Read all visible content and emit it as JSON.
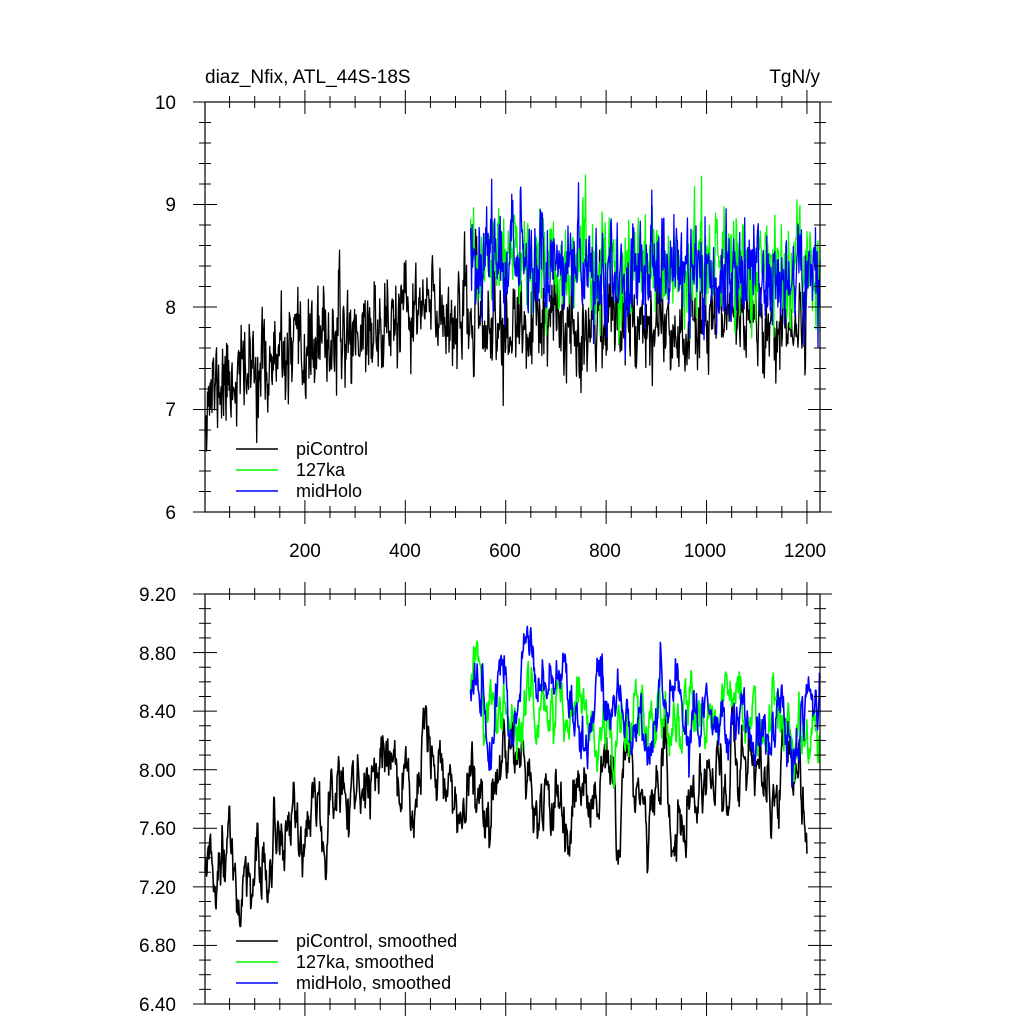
{
  "chart_data": [
    {
      "type": "line",
      "title": "diaz_Nfix, ATL_44S-18S",
      "units": "TgN/y",
      "xlabel": "",
      "ylabel": "",
      "xlim": [
        1,
        1226
      ],
      "ylim": [
        6,
        10
      ],
      "xticks": [
        200,
        400,
        600,
        800,
        1000,
        1200
      ],
      "xtick_labels": [
        "200",
        "400",
        "600",
        "800",
        "1000",
        "1200"
      ],
      "yticks": [
        6,
        7,
        8,
        9,
        10
      ],
      "ytick_labels": [
        "6",
        "7",
        "8",
        "9",
        "10"
      ],
      "legend_position": "bottom-left",
      "series": [
        {
          "name": "piControl",
          "color": "#000000",
          "x_start": 1,
          "x_end": 1200,
          "base": [
            7.15,
            7.3,
            7.4,
            7.45,
            7.55,
            7.7,
            7.75,
            7.8,
            7.9,
            8.0,
            7.9,
            7.85,
            7.75,
            7.8,
            7.85,
            7.8,
            7.9,
            7.95,
            7.85,
            7.8,
            7.9,
            8.0,
            7.9,
            7.8,
            7.85
          ],
          "noise_amp": 0.34,
          "seed": 11
        },
        {
          "name": "127ka",
          "color": "#00ff00",
          "x_start": 530,
          "x_end": 1226,
          "base": [
            8.4,
            8.45,
            8.5,
            8.45,
            8.35,
            8.3,
            8.3,
            8.35,
            8.4,
            8.4,
            8.35,
            8.3,
            8.3
          ],
          "noise_amp": 0.36,
          "seed": 23
        },
        {
          "name": "midHolo",
          "color": "#0000ff",
          "x_start": 530,
          "x_end": 1226,
          "base": [
            8.5,
            8.55,
            8.5,
            8.45,
            8.35,
            8.3,
            8.35,
            8.4,
            8.3,
            8.35,
            8.3,
            8.3,
            8.25
          ],
          "noise_amp": 0.36,
          "seed": 37
        }
      ]
    },
    {
      "type": "line",
      "title": "",
      "xlabel": "",
      "ylabel": "",
      "xlim": [
        1,
        1226
      ],
      "ylim": [
        6.4,
        9.2
      ],
      "xticks": [
        200,
        400,
        600,
        800,
        1000,
        1200
      ],
      "xtick_labels": [],
      "yticks": [
        6.4,
        6.8,
        7.2,
        7.6,
        8.0,
        8.4,
        8.8,
        9.2
      ],
      "ytick_labels": [
        "6.40",
        "6.80",
        "7.20",
        "7.60",
        "8.00",
        "8.40",
        "8.80",
        "9.20"
      ],
      "legend_position": "bottom-left",
      "series": [
        {
          "name": "piControl, smoothed",
          "color": "#000000",
          "x_start": 1,
          "x_end": 1200,
          "base": [
            7.15,
            7.2,
            7.3,
            7.4,
            7.5,
            7.7,
            7.75,
            7.8,
            7.85,
            7.9,
            7.75,
            7.8,
            7.85,
            7.8,
            7.85,
            7.85,
            7.9,
            7.95,
            7.85,
            7.85,
            7.9,
            8.0,
            7.95,
            7.8,
            7.8
          ],
          "noise_amp": 0.24,
          "seed": 51
        },
        {
          "name": "127ka, smoothed",
          "color": "#00ff00",
          "x_start": 530,
          "x_end": 1226,
          "base": [
            8.4,
            8.45,
            8.55,
            8.45,
            8.35,
            8.3,
            8.3,
            8.35,
            8.4,
            8.4,
            8.35,
            8.3,
            8.3
          ],
          "noise_amp": 0.2,
          "seed": 63
        },
        {
          "name": "midHolo, smoothed",
          "color": "#0000ff",
          "x_start": 530,
          "x_end": 1226,
          "base": [
            8.45,
            8.5,
            8.6,
            8.5,
            8.4,
            8.35,
            8.35,
            8.4,
            8.35,
            8.35,
            8.3,
            8.3,
            8.3
          ],
          "noise_amp": 0.2,
          "seed": 77
        }
      ]
    }
  ]
}
